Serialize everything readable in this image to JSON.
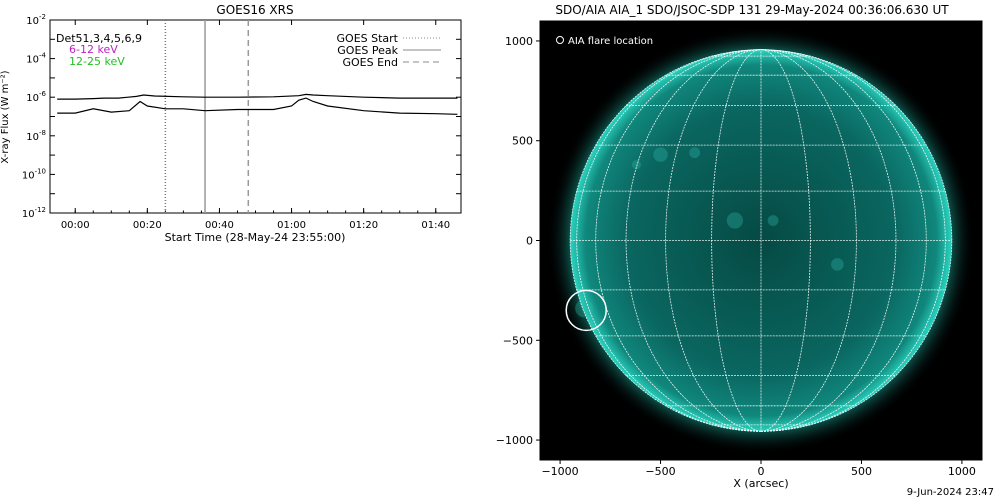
{
  "left_panel": {
    "title": "GOES16 XRS",
    "ylabel": "X-ray Flux (W m⁻²)",
    "xlabel": "Start Time (28-May-24 23:55:00)",
    "detector_label": "Det51,3,4,5,6,9",
    "channel_labels": [
      {
        "text": "6-12 keV",
        "color": "#c020c0"
      },
      {
        "text": "12-25 keV",
        "color": "#20c020"
      }
    ],
    "legend": [
      {
        "text": "GOES Start",
        "style": "dotted"
      },
      {
        "text": "GOES Peak",
        "style": "solid"
      },
      {
        "text": "GOES End",
        "style": "dashed"
      }
    ],
    "y_ticks": [
      {
        "base": "10",
        "exp": "-2"
      },
      {
        "base": "10",
        "exp": "-4"
      },
      {
        "base": "10",
        "exp": "-6"
      },
      {
        "base": "10",
        "exp": "-8"
      },
      {
        "base": "10",
        "exp": "-10"
      },
      {
        "base": "10",
        "exp": "-12"
      }
    ],
    "x_ticks": [
      "00:00",
      "00:20",
      "00:40",
      "01:00",
      "01:20",
      "01:40"
    ]
  },
  "right_panel": {
    "title": "SDO/AIA AIA_1 SDO/JSOC-SDP 131 29-May-2024 00:36:06.630 UT",
    "xlabel": "X (arcsec)",
    "annotation": "AIA flare location",
    "x_ticks": [
      "-1000",
      "-500",
      "0",
      "500",
      "1000"
    ],
    "y_ticks": [
      "1000",
      "500",
      "0",
      "-500",
      "-1000"
    ],
    "colors": {
      "disk": "#0a6b63",
      "limb": "#2bd4c0",
      "background": "#000000",
      "grid": "#ffffff"
    }
  },
  "footer": "9-Jun-2024 23:47",
  "chart_data": [
    {
      "type": "line",
      "title": "GOES16 XRS",
      "ylabel": "X-ray Flux (W m⁻²)",
      "xlabel": "Start Time (28-May-24 23:55:00)",
      "y_scale": "log",
      "ylim": [
        1e-12,
        0.01
      ],
      "x_unit": "minutes from 00:00 on 29-May-24",
      "xlim": [
        -7,
        107
      ],
      "series": [
        {
          "name": "",
          "x": [
            -5,
            0,
            5,
            8,
            12,
            17,
            19,
            22,
            30,
            36,
            45,
            55,
            62,
            64,
            66,
            70,
            80,
            90,
            100,
            106
          ],
          "y": [
            8e-07,
            8e-07,
            8.5e-07,
            9e-07,
            9e-07,
            1.1e-06,
            1.3e-06,
            1.15e-06,
            1.05e-06,
            1e-06,
            1e-06,
            1.05e-06,
            1.2e-06,
            1.4e-06,
            1.3e-06,
            1.2e-06,
            1e-06,
            9e-07,
            9e-07,
            9e-07
          ]
        },
        {
          "name": "",
          "x": [
            -5,
            0,
            5,
            10,
            15,
            18,
            20,
            25,
            30,
            36,
            45,
            55,
            60,
            62,
            64,
            66,
            70,
            80,
            90,
            100,
            106
          ],
          "y": [
            1.5e-07,
            1.5e-07,
            2.5e-07,
            1.7e-07,
            2e-07,
            6e-07,
            3.5e-07,
            2.5e-07,
            2.5e-07,
            2e-07,
            2.3e-07,
            2.3e-07,
            3.5e-07,
            7e-07,
            9e-07,
            6e-07,
            3.5e-07,
            2e-07,
            1.5e-07,
            1.4e-07,
            1.3e-07
          ]
        }
      ],
      "markers": [
        {
          "name": "GOES Start",
          "x": 25,
          "style": "dotted"
        },
        {
          "name": "GOES Peak",
          "x": 36,
          "style": "solid"
        },
        {
          "name": "GOES End",
          "x": 48,
          "style": "dashed"
        }
      ]
    },
    {
      "type": "image",
      "title": "SDO/AIA AIA_1 SDO/JSOC-SDP 131 29-May-2024 00:36:06.630 UT",
      "xlabel": "X (arcsec)",
      "xlim": [
        -1100,
        1100
      ],
      "ylim": [
        -1100,
        1100
      ],
      "disk_radius": 950,
      "flare_location": {
        "x": -870,
        "y": -350
      },
      "grid": true
    }
  ]
}
